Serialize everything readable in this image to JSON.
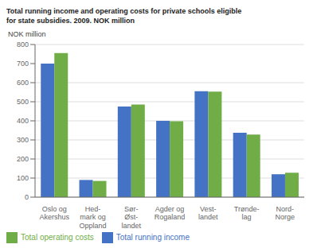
{
  "chart_data": {
    "type": "bar",
    "title": "Total running income and operating costs for private schools eligible\nfor state subsidies. 2009. NOK million",
    "ylabel": "NOK million",
    "categories": [
      "Oslo og\nAkershus",
      "Hed-\nmark og\nOppland",
      "Sør-\nØst-\nlandet",
      "Agder og\nRogaland",
      "Vest-\nlandet",
      "Trønde-\nlag",
      "Nord-\nNorge"
    ],
    "series": [
      {
        "name": "Total running income",
        "color": "#4472C4",
        "values": [
          700,
          90,
          475,
          400,
          555,
          338,
          120
        ]
      },
      {
        "name": "Total operating costs",
        "color": "#70AD47",
        "values": [
          755,
          85,
          485,
          398,
          553,
          328,
          128
        ]
      }
    ],
    "ylim": [
      0,
      800
    ],
    "yticks": [
      0,
      100,
      200,
      300,
      400,
      500,
      600,
      700,
      800
    ],
    "grid": true,
    "legend": "bottom"
  }
}
